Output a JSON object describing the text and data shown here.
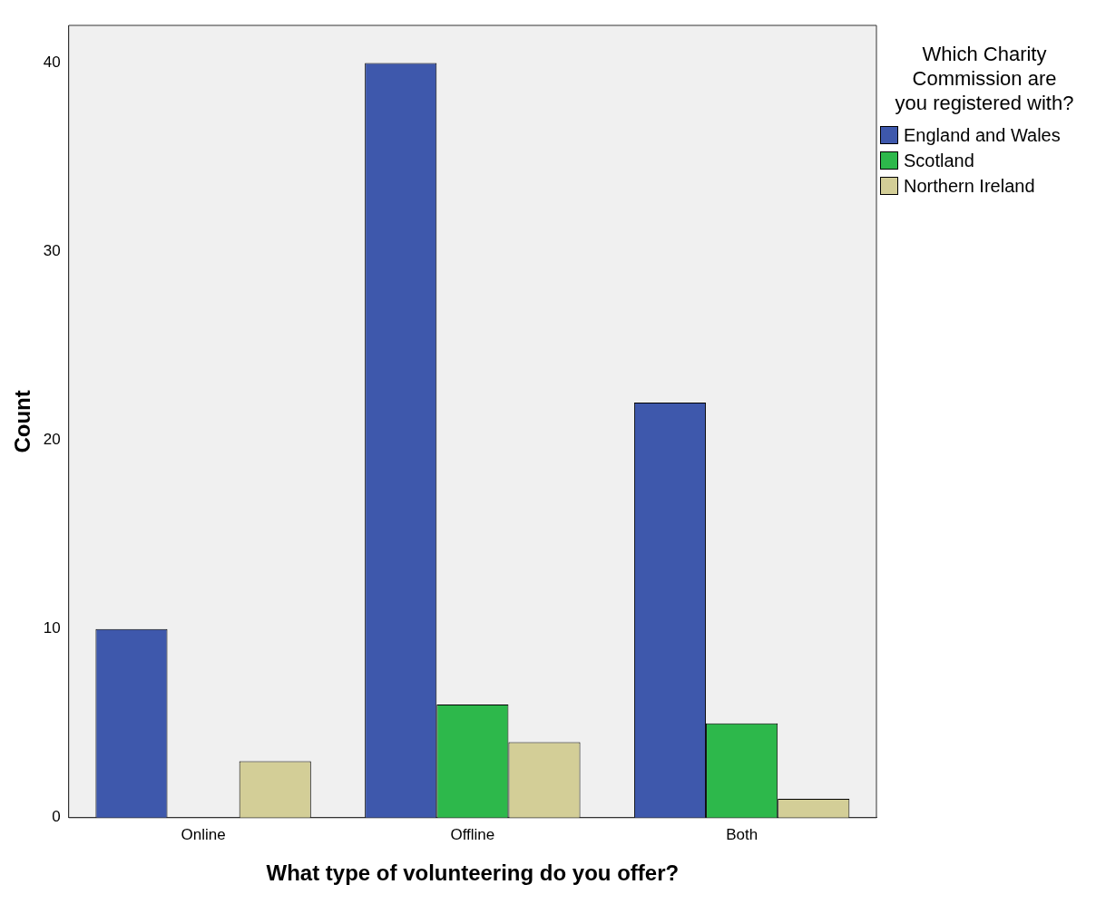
{
  "chart_data": {
    "type": "bar",
    "xlabel": "What type of volunteering do you offer?",
    "ylabel": "Count",
    "legend_title": "Which Charity Commission are you registered with?",
    "legend": "top right",
    "grid": false,
    "categories": [
      "Online",
      "Offline",
      "Both"
    ],
    "series": [
      {
        "name": "England and Wales",
        "color": "#3e58ac",
        "values": [
          10,
          40,
          22
        ]
      },
      {
        "name": "Scotland",
        "color": "#2db84b",
        "values": [
          0,
          6,
          5
        ]
      },
      {
        "name": "Northern Ireland",
        "color": "#d3ce97",
        "values": [
          3,
          4,
          1
        ]
      }
    ],
    "ylim": [
      0,
      42
    ],
    "yticks": [
      0,
      10,
      20,
      30,
      40
    ]
  }
}
